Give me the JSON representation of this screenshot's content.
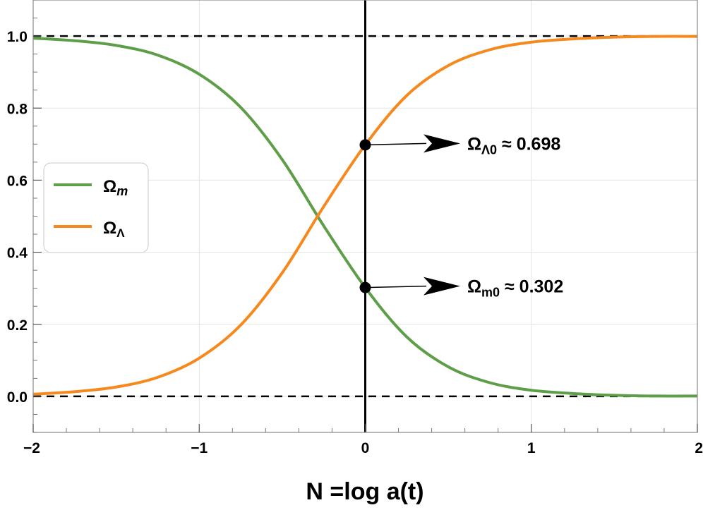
{
  "chart_data": {
    "type": "line",
    "title": "",
    "xlabel": "N =log a(t)",
    "ylabel": "",
    "xlim": [
      -2,
      2
    ],
    "ylim": [
      -0.1,
      1.1
    ],
    "grid": true,
    "x_ticks": [
      "−2",
      "−1",
      "0",
      "1",
      "2"
    ],
    "y_ticks": [
      "0.0",
      "0.2",
      "0.4",
      "0.6",
      "0.8",
      "1.0"
    ],
    "legend": {
      "placement": "left",
      "entries": [
        {
          "name": "Ω",
          "sub": "m",
          "color": "#5e9e49"
        },
        {
          "name": "Ω",
          "sub": "Λ",
          "color": "#f5891e"
        }
      ]
    },
    "series": [
      {
        "name": "Ωm",
        "color": "#5e9e49",
        "x": [
          -2.0,
          -1.75,
          -1.5,
          -1.25,
          -1.0,
          -0.75,
          -0.5,
          -0.25,
          0.0,
          0.25,
          0.5,
          0.75,
          1.0,
          1.25,
          1.5,
          1.75,
          2.0
        ],
        "y": [
          0.994,
          0.987,
          0.974,
          0.947,
          0.894,
          0.802,
          0.657,
          0.473,
          0.302,
          0.165,
          0.082,
          0.038,
          0.017,
          0.008,
          0.003,
          0.001,
          0.001
        ]
      },
      {
        "name": "ΩΛ",
        "color": "#f5891e",
        "x": [
          -2.0,
          -1.75,
          -1.5,
          -1.25,
          -1.0,
          -0.75,
          -0.5,
          -0.25,
          0.0,
          0.25,
          0.5,
          0.75,
          1.0,
          1.25,
          1.5,
          1.75,
          2.0
        ],
        "y": [
          0.006,
          0.013,
          0.026,
          0.053,
          0.106,
          0.198,
          0.343,
          0.527,
          0.698,
          0.835,
          0.918,
          0.962,
          0.983,
          0.992,
          0.997,
          0.999,
          0.999
        ]
      }
    ],
    "reference_lines": {
      "horizontal_dashed": [
        0.0,
        1.0
      ],
      "vertical_solid": [
        0.0
      ]
    },
    "annotations": [
      {
        "label_main": "Ω",
        "label_sub": "Λ0",
        "label_rest": " ≈ 0.698",
        "x": 0.0,
        "y": 0.698
      },
      {
        "label_main": "Ω",
        "label_sub": "m0",
        "label_rest": " ≈ 0.302",
        "x": 0.0,
        "y": 0.302
      }
    ]
  }
}
